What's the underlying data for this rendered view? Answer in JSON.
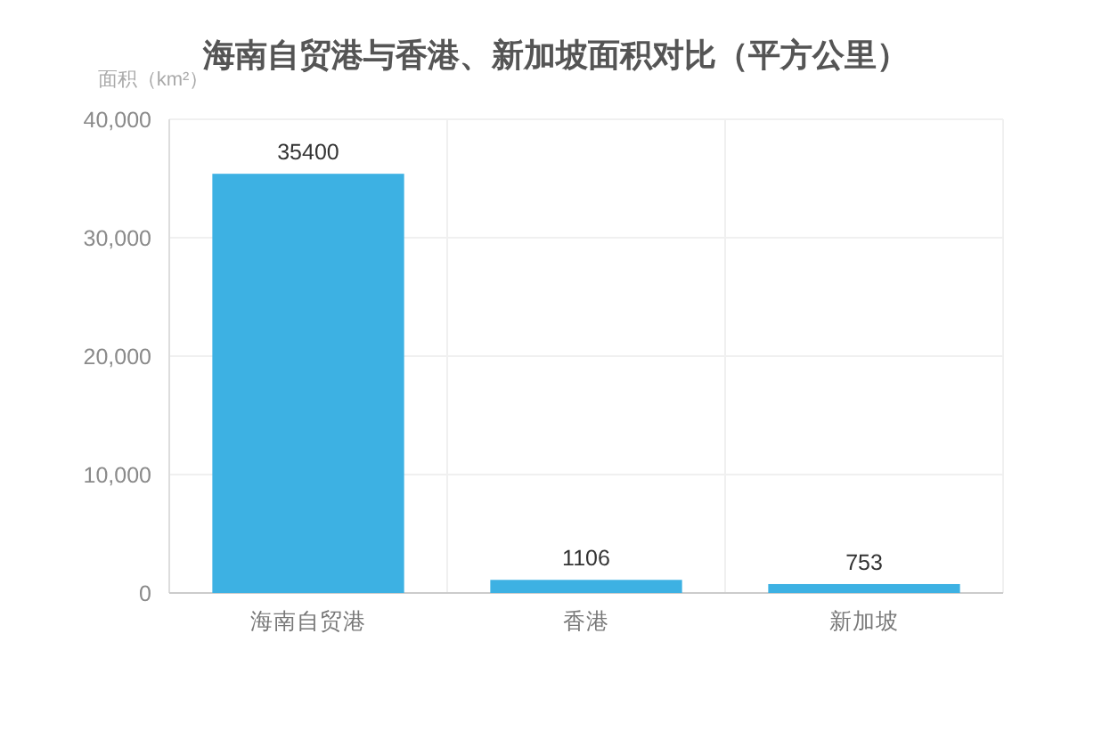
{
  "chart_data": {
    "type": "bar",
    "title": "海南自贸港与香港、新加坡面积对比（平方公里）",
    "ylabel": "面积（km²）",
    "categories": [
      "海南自贸港",
      "香港",
      "新加坡"
    ],
    "values": [
      35400,
      1106,
      753
    ],
    "color": "#3db1e3",
    "ylim": [
      0,
      40000
    ],
    "yticks": [
      0,
      {
        "value": 10000,
        "label": "10,000"
      },
      {
        "value": 20000,
        "label": "20,000"
      },
      {
        "value": 30000,
        "label": "30,000"
      },
      {
        "value": 40000,
        "label": "40,000"
      }
    ],
    "grid": true,
    "data_labels": true
  }
}
